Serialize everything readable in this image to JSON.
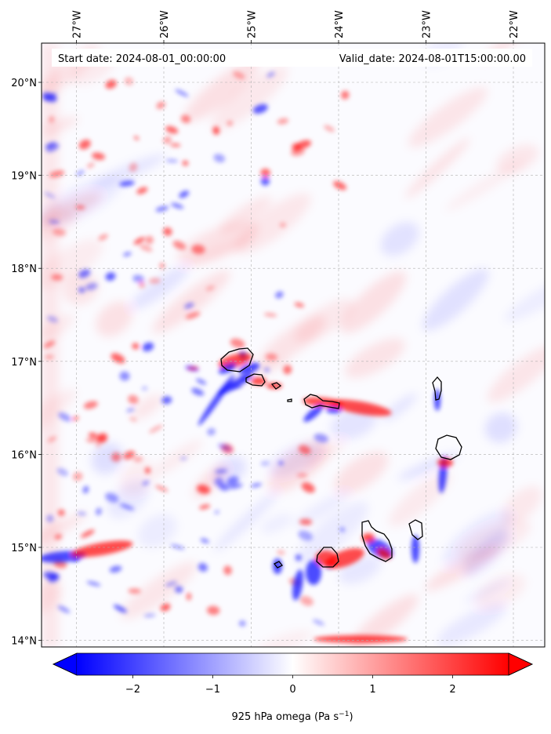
{
  "map": {
    "start_label": "Start date: 2024-08-01_00:00:00",
    "valid_label": "Valid_date: 2024-08-01T15:00:00.00",
    "lon_ticks": [
      {
        "value": -27,
        "label": "27°W"
      },
      {
        "value": -26,
        "label": "26°W"
      },
      {
        "value": -25,
        "label": "25°W"
      },
      {
        "value": -24,
        "label": "24°W"
      },
      {
        "value": -23,
        "label": "23°W"
      },
      {
        "value": -22,
        "label": "22°W"
      }
    ],
    "lat_ticks": [
      {
        "value": 14,
        "label": "14°N"
      },
      {
        "value": 15,
        "label": "15°N"
      },
      {
        "value": 16,
        "label": "16°N"
      },
      {
        "value": 17,
        "label": "17°N"
      },
      {
        "value": 18,
        "label": "18°N"
      },
      {
        "value": 19,
        "label": "19°N"
      },
      {
        "value": 20,
        "label": "20°N"
      }
    ],
    "colors": {
      "negative": "#0000ff",
      "zero": "#ffffff",
      "positive": "#ff0000",
      "coastline": "#000000",
      "gridline": "#b0b0b0"
    },
    "gridlines": true
  },
  "colorbar": {
    "ticks": [
      {
        "value": -2,
        "label": "−2"
      },
      {
        "value": -1,
        "label": "−1"
      },
      {
        "value": 0,
        "label": "0"
      },
      {
        "value": 1,
        "label": "1"
      },
      {
        "value": 2,
        "label": "2"
      }
    ],
    "range": [
      -2.7,
      2.7
    ],
    "extend": "both",
    "label_main": "925 hPa omega (Pa s",
    "label_sup": "−1",
    "label_end": ")"
  }
}
